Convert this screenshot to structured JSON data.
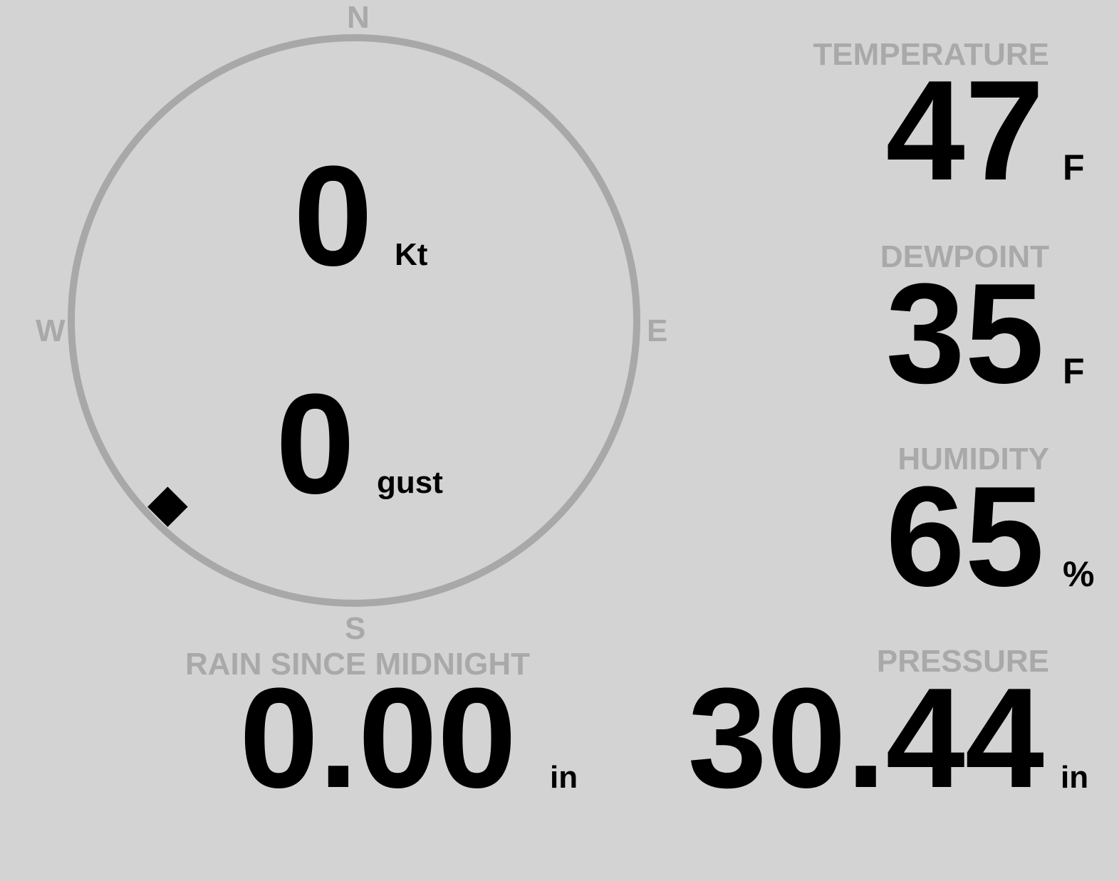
{
  "colors": {
    "background": "#d3d3d3",
    "label": "#a9a9a9",
    "value": "#000000",
    "compass_ring": "#a8a8a8"
  },
  "compass": {
    "north": "N",
    "east": "E",
    "south": "S",
    "west": "W",
    "direction_deg": 225,
    "marker_icon": "diamond-direction-marker"
  },
  "wind": {
    "speed": "0",
    "speed_unit": "Kt",
    "gust": "0",
    "gust_unit": "gust"
  },
  "temperature": {
    "label": "TEMPERATURE",
    "value": "47",
    "unit": "F"
  },
  "dewpoint": {
    "label": "DEWPOINT",
    "value": "35",
    "unit": "F"
  },
  "humidity": {
    "label": "HUMIDITY",
    "value": "65",
    "unit": "%"
  },
  "pressure": {
    "label": "PRESSURE",
    "value": "30.44",
    "unit": "in"
  },
  "rain": {
    "label": "RAIN SINCE MIDNIGHT",
    "value": "0.00",
    "unit": "in"
  }
}
